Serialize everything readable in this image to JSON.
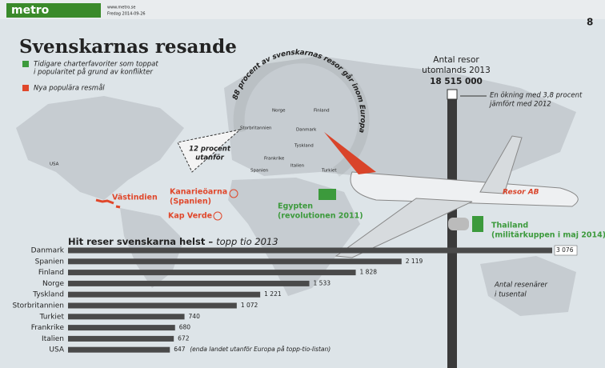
{
  "header": {
    "logo": "metro",
    "line1": "www.metro.se",
    "line2": "Fredag 2014-09-26",
    "page": "8"
  },
  "infographic": {
    "title": "Svenskarnas resande",
    "legend": [
      {
        "lines": [
          "Tidigare charterfavoriter som toppat",
          "i popularitet på grund av konflikter"
        ],
        "color": "#3c9a3c"
      },
      {
        "lines": [
          "Nya populära resmål"
        ],
        "color": "#e0472b"
      }
    ],
    "europe_arc": "88 procent av svenskarnas resor går inom Europa",
    "outside": [
      "12 procent",
      "utanför"
    ],
    "countries": [
      "Norge",
      "Finland",
      "Storbritannien",
      "Danmark",
      "Tyskland",
      "Frankrike",
      "Spanien",
      "Italien",
      "Turkiet",
      "USA"
    ],
    "destinations": [
      {
        "lines": [
          "Västindien"
        ],
        "color": "#e0472b"
      },
      {
        "lines": [
          "Kanarieöarna",
          "(Spanien)"
        ],
        "color": "#e0472b"
      },
      {
        "lines": [
          "Kap Verde"
        ],
        "color": "#e0472b"
      },
      {
        "lines": [
          "Egypten",
          "(revolutionen 2011)"
        ],
        "color": "#3c9a3c"
      },
      {
        "lines": [
          "Thailand",
          "(militärkuppen i maj 2014)"
        ],
        "color": "#3c9a3c"
      }
    ],
    "total_label": [
      "Antal resor",
      "utomlands 2013"
    ],
    "total": "18 515 000",
    "increase": [
      "En ökning med 3,8 procent",
      "jämfört med 2012"
    ],
    "unit_note": [
      "Antal resenärer",
      "i tusental"
    ],
    "airline": "Resor AB"
  },
  "chart_data": {
    "type": "bar",
    "orientation": "horizontal",
    "title": "Hit reser svenskarna helst –",
    "subtitle": "topp tio 2013",
    "categories": [
      "Danmark",
      "Spanien",
      "Finland",
      "Norge",
      "Tyskland",
      "Storbritannien",
      "Turkiet",
      "Frankrike",
      "Italien",
      "USA"
    ],
    "values": [
      3076,
      2119,
      1828,
      1533,
      1221,
      1072,
      740,
      680,
      672,
      647
    ],
    "value_labels": [
      "3 076",
      "2 119",
      "1 828",
      "1 533",
      "1 221",
      "1 072",
      "740",
      "680",
      "672",
      "647"
    ],
    "annotation": "(enda landet utanför Europa på topp-tio-listan)",
    "color": "#4a4a4a"
  }
}
